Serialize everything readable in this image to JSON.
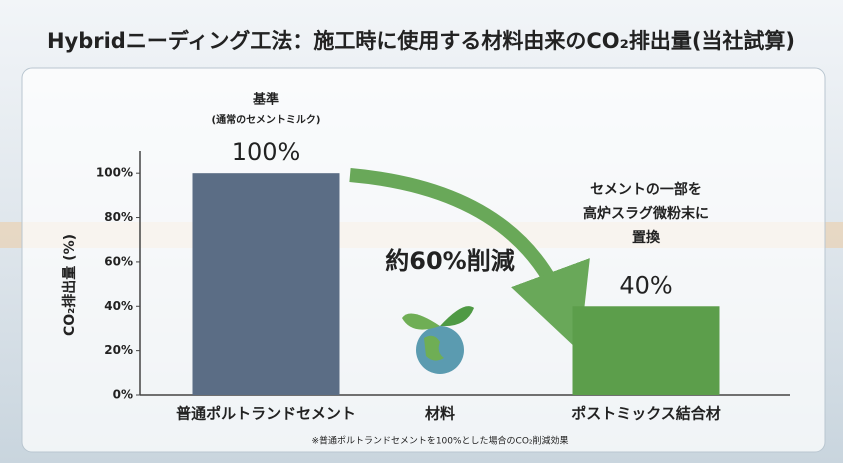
{
  "chart_data": {
    "type": "bar",
    "title": "Hybridニーディング工法：施工時に使用する材料由来のCO₂排出量(当社試算)",
    "y_label": "CO₂排出量 (%)",
    "x_label": "材料",
    "categories": [
      "普通ポルトランドセメント",
      "ポストミックス結合材"
    ],
    "values": [
      100,
      40
    ],
    "value_labels": [
      "100%",
      "40%"
    ],
    "colors": [
      "#5b6d85",
      "#5c9e4b"
    ],
    "ylim": [
      0,
      110
    ],
    "yticks": [
      {
        "value": 0,
        "label": "0%"
      },
      {
        "value": 20,
        "label": "20%"
      },
      {
        "value": 40,
        "label": "40%"
      },
      {
        "value": 60,
        "label": "60%"
      },
      {
        "value": 80,
        "label": "80%"
      },
      {
        "value": 100,
        "label": "100%"
      }
    ],
    "grid": false,
    "annotations": [
      "基準",
      "(通常のセメントミルク)",
      "セメントの一部を",
      "高炉スラグ微粉末に",
      "置換",
      "約60%削減"
    ],
    "footnote": "※普通ポルトランドセメントを100%とした場合のCO₂削減効果"
  }
}
